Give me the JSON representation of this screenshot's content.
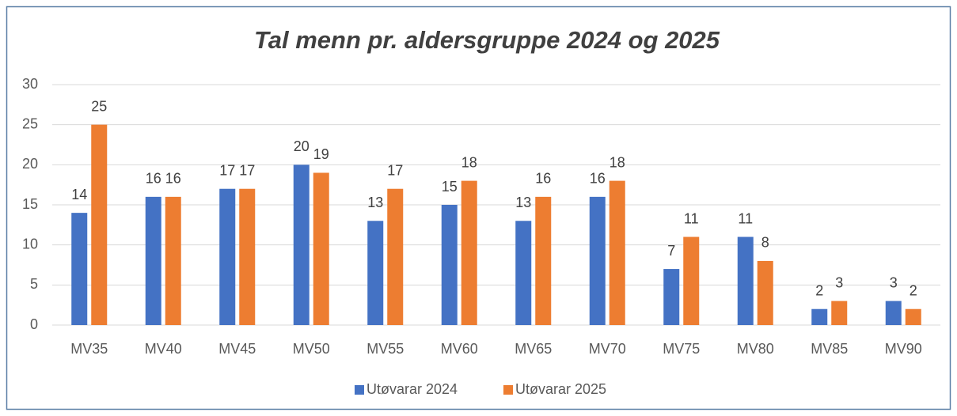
{
  "chart_data": {
    "type": "bar",
    "title": "Tal menn pr. aldersgruppe 2024 og 2025",
    "categories": [
      "MV35",
      "MV40",
      "MV45",
      "MV50",
      "MV55",
      "MV60",
      "MV65",
      "MV70",
      "MV75",
      "MV80",
      "MV85",
      "MV90"
    ],
    "series": [
      {
        "name": "Utøvarar 2024",
        "color": "#4472c4",
        "values": [
          14,
          16,
          17,
          20,
          13,
          15,
          13,
          16,
          7,
          11,
          2,
          3
        ]
      },
      {
        "name": "Utøvarar 2025",
        "color": "#ed7d31",
        "values": [
          25,
          16,
          17,
          19,
          17,
          18,
          16,
          18,
          11,
          8,
          3,
          2
        ]
      }
    ],
    "ylim": [
      0,
      30
    ],
    "yticks": [
      0,
      5,
      10,
      15,
      20,
      25,
      30
    ],
    "grid": true,
    "legend": "bottom"
  }
}
